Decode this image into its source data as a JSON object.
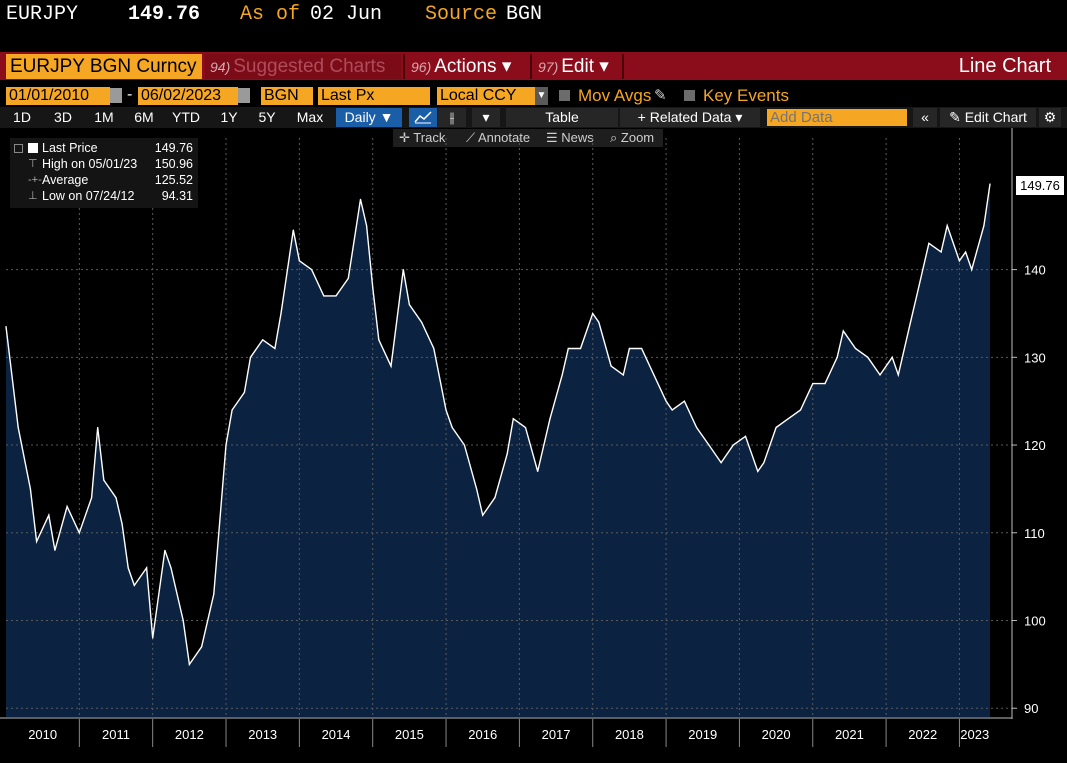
{
  "header": {
    "ticker": "EURJPY",
    "price": "149.76",
    "as_of_label": "As of",
    "as_of_date": "02 Jun",
    "source_label": "Source",
    "source_value": "BGN"
  },
  "title_bar": {
    "security": "EURJPY BGN Curncy",
    "suggested_num": "94)",
    "suggested_label": "Suggested Charts",
    "actions_num": "96)",
    "actions_label": "Actions ▾",
    "edit_num": "97)",
    "edit_label": "Edit ▾",
    "chart_type": "Line Chart"
  },
  "settings_row": {
    "start_date": "01/01/2010",
    "dash": "-",
    "end_date": "06/02/2023",
    "source": "BGN",
    "field": "Last Px",
    "currency": "Local CCY",
    "mov_avgs": "Mov Avgs",
    "key_events": "Key Events"
  },
  "period_row": {
    "periods": [
      "1D",
      "3D",
      "1M",
      "6M",
      "YTD",
      "1Y",
      "5Y",
      "Max"
    ],
    "frequency": "Daily ▼",
    "table": "Table",
    "related_data": "+ Related Data ▾",
    "add_data_placeholder": "Add Data",
    "edit_chart": "Edit Chart"
  },
  "toolbar": {
    "track": "Track",
    "annotate": "Annotate",
    "news": "News",
    "zoom": "Zoom"
  },
  "legend": {
    "last_price_label": "Last Price",
    "last_price_value": "149.76",
    "high_label": "High on 05/01/23",
    "high_value": "150.96",
    "average_label": "Average",
    "average_value": "125.52",
    "low_label": "Low on 07/24/12",
    "low_value": "94.31"
  },
  "last_value_tag": "149.76",
  "colors": {
    "accent_amber": "#f5a623",
    "title_bar_red": "#8b0c1a",
    "area_fill": "#0b2240",
    "line": "#ffffff"
  },
  "chart_data": {
    "type": "area",
    "series": [
      {
        "name": "Last Price",
        "x": [
          "2010-01",
          "2010-03",
          "2010-05",
          "2010-06",
          "2010-08",
          "2010-09",
          "2010-11",
          "2011-01",
          "2011-03",
          "2011-04",
          "2011-05",
          "2011-07",
          "2011-08",
          "2011-09",
          "2011-10",
          "2011-12",
          "2012-01",
          "2012-03",
          "2012-04",
          "2012-06",
          "2012-07",
          "2012-09",
          "2012-11",
          "2013-01",
          "2013-02",
          "2013-04",
          "2013-05",
          "2013-07",
          "2013-09",
          "2013-10",
          "2013-12",
          "2014-01",
          "2014-03",
          "2014-05",
          "2014-07",
          "2014-09",
          "2014-11",
          "2014-12",
          "2015-01",
          "2015-02",
          "2015-04",
          "2015-06",
          "2015-07",
          "2015-09",
          "2015-11",
          "2016-01",
          "2016-02",
          "2016-04",
          "2016-06",
          "2016-07",
          "2016-09",
          "2016-11",
          "2016-12",
          "2017-02",
          "2017-04",
          "2017-06",
          "2017-08",
          "2017-09",
          "2017-11",
          "2018-01",
          "2018-02",
          "2018-04",
          "2018-06",
          "2018-07",
          "2018-09",
          "2018-11",
          "2019-01",
          "2019-02",
          "2019-04",
          "2019-06",
          "2019-08",
          "2019-10",
          "2019-12",
          "2020-02",
          "2020-04",
          "2020-05",
          "2020-07",
          "2020-09",
          "2020-11",
          "2021-01",
          "2021-03",
          "2021-05",
          "2021-06",
          "2021-08",
          "2021-10",
          "2021-12",
          "2022-02",
          "2022-03",
          "2022-05",
          "2022-06",
          "2022-08",
          "2022-10",
          "2022-11",
          "2023-01",
          "2023-02",
          "2023-03",
          "2023-05",
          "2023-06"
        ],
        "values": [
          133.5,
          122,
          115,
          109,
          112,
          108,
          113,
          110,
          114,
          122,
          116,
          114,
          111,
          106,
          104,
          106,
          98,
          108,
          106,
          100,
          95,
          97,
          103,
          120,
          124,
          126,
          130,
          132,
          131,
          135,
          144.5,
          141,
          140,
          137,
          137,
          139,
          148,
          145,
          138,
          132,
          129,
          140,
          136,
          134,
          131,
          124,
          122,
          120,
          115,
          112,
          114,
          119,
          123,
          122,
          117,
          123,
          128,
          131,
          131,
          135,
          134,
          129,
          128,
          131,
          131,
          128,
          125,
          124,
          125,
          122,
          120,
          118,
          120,
          121,
          117,
          118,
          122,
          123,
          124,
          127,
          127,
          130,
          133,
          131,
          130,
          128,
          130,
          128,
          134,
          137,
          143,
          142,
          145,
          141,
          142,
          140,
          145,
          149.76
        ]
      }
    ],
    "ylim": [
      89,
      155
    ],
    "yticks": [
      90,
      100,
      110,
      120,
      130,
      140
    ],
    "xticks": [
      "2010",
      "2011",
      "2012",
      "2013",
      "2014",
      "2015",
      "2016",
      "2017",
      "2018",
      "2019",
      "2020",
      "2021",
      "2022",
      "2023"
    ],
    "grid": true
  }
}
